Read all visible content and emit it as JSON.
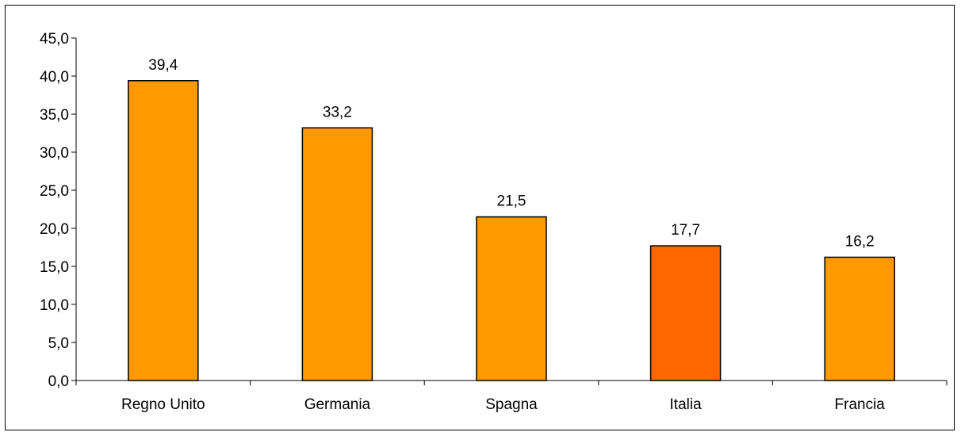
{
  "chart_data": {
    "type": "bar",
    "categories": [
      "Regno Unito",
      "Germania",
      "Spagna",
      "Italia",
      "Francia"
    ],
    "values": [
      39.4,
      33.2,
      21.5,
      17.7,
      16.2
    ],
    "value_labels": [
      "39,4",
      "33,2",
      "21,5",
      "17,7",
      "16,2"
    ],
    "title": "",
    "xlabel": "",
    "ylabel": "",
    "ylim": [
      0,
      45
    ],
    "y_ticks": [
      0,
      5,
      10,
      15,
      20,
      25,
      30,
      35,
      40,
      45
    ],
    "y_tick_labels": [
      "0,0",
      "5,0",
      "10,0",
      "15,0",
      "20,0",
      "25,0",
      "30,0",
      "35,0",
      "40,0",
      "45,0"
    ],
    "grid": false,
    "legend": "none",
    "bar_colors": [
      "#FF9900",
      "#FF9900",
      "#FF9900",
      "#FF6600",
      "#FF9900"
    ],
    "bar_edge_color": "#000000"
  }
}
